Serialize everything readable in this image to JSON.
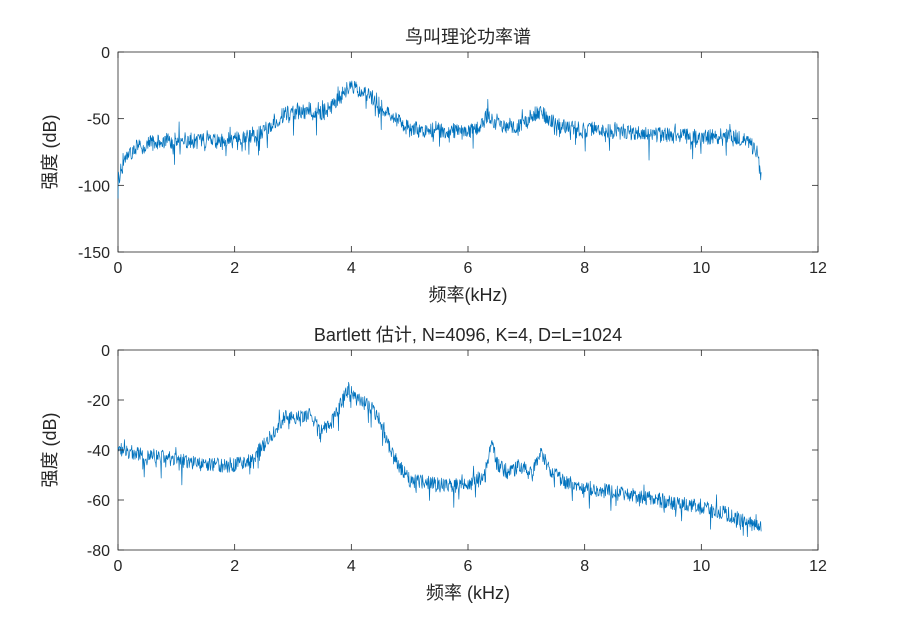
{
  "figure": {
    "background": "#ffffff",
    "line_color": "#0072BD",
    "axis_color": "#262626"
  },
  "chart_data": [
    {
      "type": "line",
      "title": "鸟叫理论功率谱",
      "xlabel": "频率(kHz)",
      "ylabel": "强度 (dB)",
      "xlim": [
        0,
        12
      ],
      "ylim": [
        -150,
        0
      ],
      "xticks": [
        0,
        2,
        4,
        6,
        8,
        10,
        12
      ],
      "yticks": [
        0,
        -50,
        -100,
        -150
      ],
      "x_range_data": [
        0,
        11.025
      ],
      "series": [
        {
          "color": "#0072BD",
          "x": [
            0,
            0.1,
            0.3,
            0.6,
            1.0,
            1.5,
            2.0,
            2.4,
            2.6,
            2.8,
            3.0,
            3.3,
            3.5,
            3.7,
            3.85,
            4.0,
            4.15,
            4.3,
            4.5,
            4.7,
            5.0,
            5.5,
            6.0,
            6.2,
            6.35,
            6.5,
            6.8,
            7.0,
            7.2,
            7.4,
            7.6,
            8.0,
            9.0,
            10.0,
            10.3,
            10.6,
            10.8,
            10.95,
            11.025
          ],
          "y": [
            -96,
            -82,
            -72,
            -68,
            -66,
            -67,
            -66,
            -62,
            -55,
            -48,
            -45,
            -44,
            -46,
            -40,
            -32,
            -25,
            -31,
            -32,
            -40,
            -48,
            -58,
            -59,
            -60,
            -57,
            -46,
            -54,
            -55,
            -52,
            -44,
            -50,
            -56,
            -58,
            -61,
            -64,
            -63,
            -64,
            -66,
            -75,
            -95
          ],
          "noise_amplitude_db": 6
        }
      ]
    },
    {
      "type": "line",
      "title": "Bartlett 估计, N=4096, K=4, D=L=1024",
      "xlabel": "频率 (kHz)",
      "ylabel": "强度 (dB)",
      "xlim": [
        0,
        12
      ],
      "ylim": [
        -80,
        0
      ],
      "xticks": [
        0,
        2,
        4,
        6,
        8,
        10,
        12
      ],
      "yticks": [
        0,
        -20,
        -40,
        -60,
        -80
      ],
      "x_range_data": [
        0,
        11.025
      ],
      "series": [
        {
          "color": "#0072BD",
          "x": [
            0,
            0.2,
            0.5,
            1.0,
            1.5,
            2.0,
            2.3,
            2.5,
            2.7,
            2.9,
            3.1,
            3.3,
            3.5,
            3.7,
            3.85,
            3.95,
            4.1,
            4.3,
            4.5,
            4.7,
            5.0,
            5.5,
            6.0,
            6.3,
            6.4,
            6.5,
            6.7,
            6.9,
            7.1,
            7.25,
            7.4,
            7.6,
            8.0,
            9.0,
            10.0,
            10.5,
            11.025
          ],
          "y": [
            -40,
            -41,
            -42,
            -44,
            -46,
            -46,
            -44,
            -38,
            -32,
            -25,
            -27,
            -26,
            -32,
            -28,
            -20,
            -15,
            -20,
            -22,
            -28,
            -42,
            -52,
            -54,
            -54,
            -50,
            -36,
            -46,
            -49,
            -46,
            -50,
            -40,
            -48,
            -52,
            -55,
            -59,
            -63,
            -66,
            -71
          ],
          "noise_amplitude_db": 3
        }
      ]
    }
  ]
}
